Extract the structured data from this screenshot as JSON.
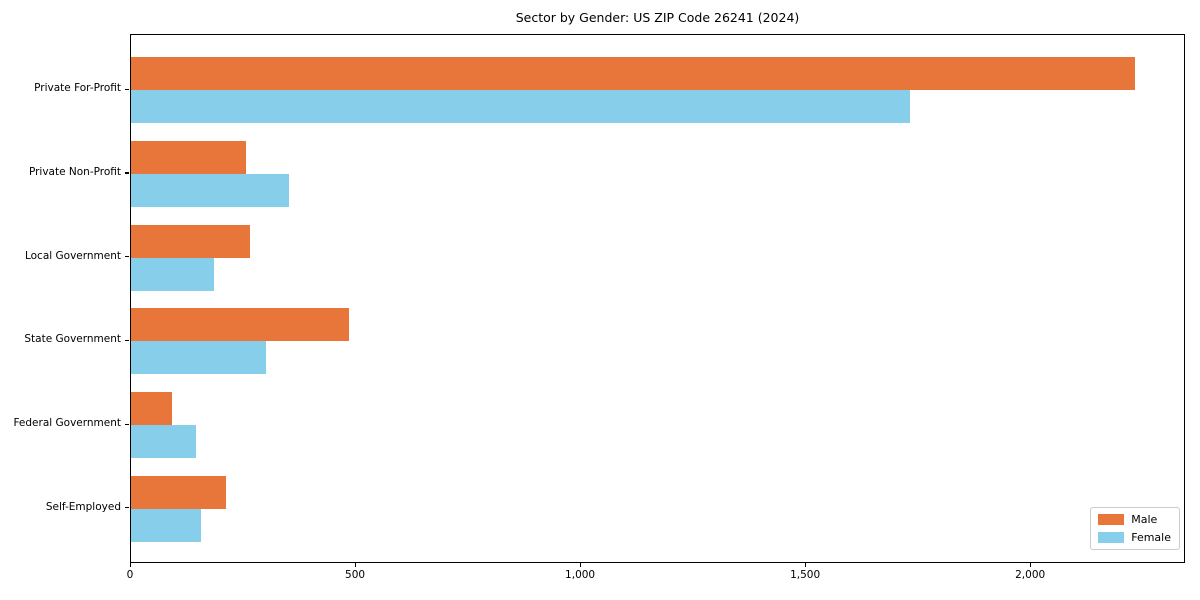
{
  "chart_data": {
    "type": "bar",
    "orientation": "horizontal",
    "title": "Sector by Gender: US ZIP Code 26241 (2024)",
    "categories": [
      "Private For-Profit",
      "Private Non-Profit",
      "Local Government",
      "State Government",
      "Federal Government",
      "Self-Employed"
    ],
    "series": [
      {
        "name": "Male",
        "color": "#E8763B",
        "values": [
          2230,
          255,
          265,
          485,
          90,
          210
        ]
      },
      {
        "name": "Female",
        "color": "#87CEEB",
        "values": [
          1730,
          350,
          185,
          300,
          145,
          155
        ]
      }
    ],
    "xlabel": "",
    "ylabel": "",
    "xlim": [
      0,
      2344
    ],
    "x_ticks": [
      0,
      500,
      1000,
      1500,
      2000
    ],
    "x_tick_labels": [
      "0",
      "500",
      "1,000",
      "1,500",
      "2,000"
    ],
    "grid": false,
    "legend_position": "lower right"
  }
}
